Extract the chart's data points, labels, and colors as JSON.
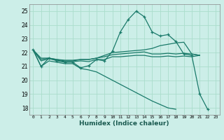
{
  "xlabel": "Humidex (Indice chaleur)",
  "bg_color": "#cceee8",
  "grid_color": "#aaddcc",
  "line_color": "#1a7a6a",
  "xlim": [
    -0.5,
    23.5
  ],
  "ylim": [
    17.5,
    25.5
  ],
  "yticks": [
    18,
    19,
    20,
    21,
    22,
    23,
    24,
    25
  ],
  "x_ticks": [
    0,
    1,
    2,
    3,
    4,
    5,
    6,
    7,
    8,
    9,
    10,
    11,
    12,
    13,
    14,
    15,
    16,
    17,
    18,
    19,
    20,
    21,
    22,
    23
  ],
  "series": [
    {
      "y": [
        22.2,
        21.0,
        21.6,
        21.4,
        21.3,
        21.3,
        20.9,
        21.05,
        21.5,
        21.4,
        22.1,
        23.5,
        24.4,
        25.0,
        24.6,
        23.5,
        23.2,
        23.3,
        22.8,
        21.9,
        21.8,
        19.0,
        17.9,
        null
      ],
      "marker": true
    },
    {
      "y": [
        22.2,
        21.6,
        21.6,
        21.5,
        21.4,
        21.4,
        21.5,
        21.5,
        21.6,
        21.8,
        22.0,
        22.05,
        22.1,
        22.15,
        22.2,
        22.3,
        22.5,
        22.6,
        22.7,
        22.75,
        21.9,
        21.8,
        null,
        null
      ],
      "marker": false
    },
    {
      "y": [
        22.2,
        21.5,
        21.6,
        21.5,
        21.45,
        21.45,
        21.5,
        21.5,
        21.6,
        21.7,
        21.85,
        21.9,
        21.95,
        22.0,
        22.05,
        21.9,
        21.9,
        21.95,
        21.9,
        21.95,
        21.9,
        21.8,
        null,
        null
      ],
      "marker": false
    },
    {
      "y": [
        22.2,
        21.4,
        21.55,
        21.45,
        21.35,
        21.35,
        21.4,
        21.35,
        21.5,
        21.5,
        21.7,
        21.7,
        21.75,
        21.8,
        21.8,
        21.7,
        21.7,
        21.75,
        21.7,
        21.75,
        21.7,
        21.8,
        null,
        null
      ],
      "marker": false
    },
    {
      "y": [
        22.2,
        21.0,
        21.4,
        21.3,
        21.2,
        21.2,
        20.85,
        20.75,
        20.6,
        20.3,
        20.0,
        19.7,
        19.4,
        19.1,
        18.8,
        18.5,
        18.25,
        18.0,
        17.9,
        null,
        null,
        null,
        null,
        null
      ],
      "marker": false
    }
  ]
}
